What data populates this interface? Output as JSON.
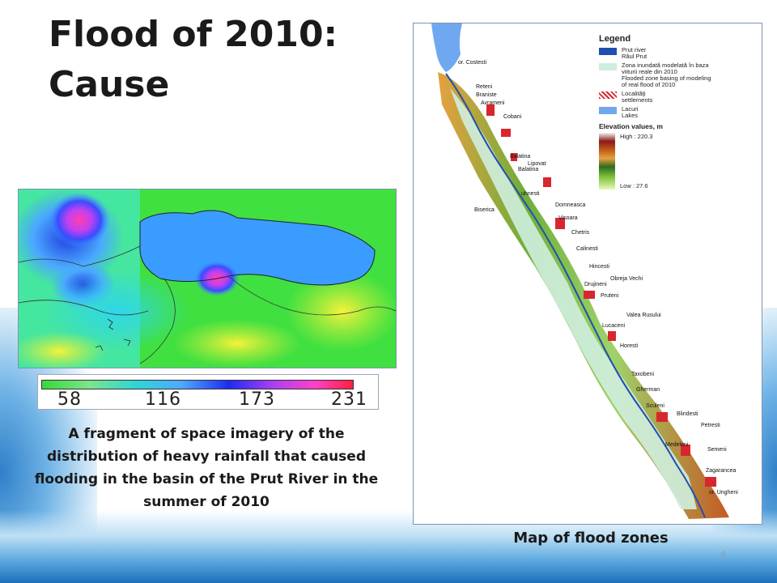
{
  "slide": {
    "title_line1": "Flood of 2010:",
    "title_line2": "Cause",
    "page_number": "4"
  },
  "rainfall_map": {
    "scale_labels": [
      "58",
      "116",
      "173",
      "231"
    ],
    "caption": "A fragment of space imagery of the distribution of heavy rainfall that caused flooding in the basin of the Prut River in the summer of 2010"
  },
  "flood_map": {
    "caption": "Map of flood zones",
    "legend": {
      "title": "Legend",
      "items": [
        {
          "label": "Prut river\nRâul Prut",
          "color": "#1f4fb0"
        },
        {
          "label": "Zona inundată modelată în baza\nviiturii reale din 2010\nFlooded zone basing of modeling\nof real flood of 2010",
          "color": "#cfeede"
        },
        {
          "label": "Localităţi\nsettlements",
          "color": "#d8262e"
        },
        {
          "label": "Lacuri\nLakes",
          "color": "#6fa8f0"
        }
      ],
      "elevation_title": "Elevation values, m",
      "elevation_high": "High : 220.3",
      "elevation_low": "Low : 27.6"
    },
    "places": [
      "or. Costesti",
      "Reteni",
      "Braniste",
      "Avrameni",
      "Cobani",
      "Balatina",
      "Lipovat",
      "Balatina",
      "uhnesti",
      "Domneasca",
      "Biserica",
      "Visoara",
      "Chetris",
      "Calinesti",
      "Hincesti",
      "Obreja Vechi",
      "Drujineni",
      "Pruteni",
      "Valea Rusului",
      "Lucaceni",
      "Horesti",
      "Taxobeni",
      "Gherman",
      "Sculeni",
      "Blindesti",
      "Petresti",
      "Medeleni",
      "Semeni",
      "Zagarancea",
      "or. Ungheni"
    ]
  }
}
